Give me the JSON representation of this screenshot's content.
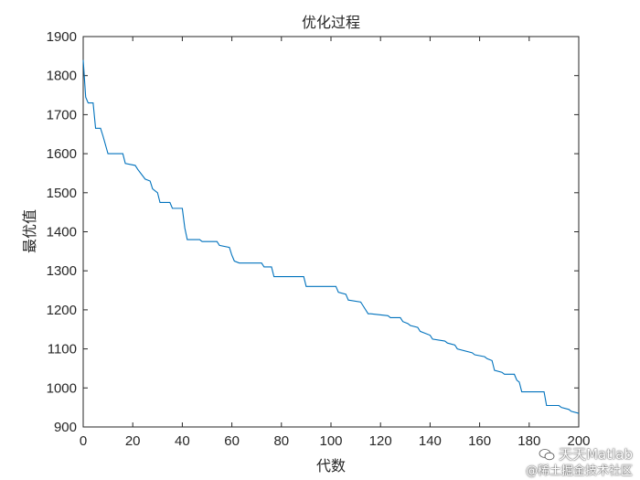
{
  "chart_data": {
    "type": "line",
    "title": "优化过程",
    "xlabel": "代数",
    "ylabel": "最优值",
    "xlim": [
      0,
      200
    ],
    "ylim": [
      900,
      1900
    ],
    "xticks": [
      0,
      20,
      40,
      60,
      80,
      100,
      120,
      140,
      160,
      180,
      200
    ],
    "yticks": [
      900,
      1000,
      1100,
      1200,
      1300,
      1400,
      1500,
      1600,
      1700,
      1800,
      1900
    ],
    "grid": false,
    "legend": "none",
    "series_color": "#0072BD",
    "series": [
      {
        "x": [
          0,
          1,
          2,
          4,
          5,
          7,
          8,
          10,
          16,
          17,
          21,
          22,
          25,
          27,
          28,
          30,
          31,
          35,
          36,
          40,
          41,
          42,
          47,
          48,
          54,
          55,
          59,
          60,
          61,
          63,
          72,
          73,
          76,
          77,
          89,
          90,
          102,
          103,
          106,
          107,
          112,
          113,
          115,
          116,
          123,
          124,
          128,
          129,
          131,
          132,
          135,
          136,
          140,
          141,
          146,
          147,
          150,
          151,
          157,
          158,
          162,
          163,
          165,
          166,
          169,
          170,
          174,
          175,
          176,
          177,
          186,
          187,
          192,
          193,
          196,
          197,
          200
        ],
        "values": [
          1840,
          1745,
          1730,
          1730,
          1665,
          1665,
          1645,
          1600,
          1600,
          1575,
          1570,
          1560,
          1535,
          1530,
          1510,
          1500,
          1475,
          1475,
          1460,
          1460,
          1410,
          1380,
          1380,
          1375,
          1375,
          1365,
          1360,
          1340,
          1325,
          1320,
          1320,
          1310,
          1310,
          1285,
          1285,
          1260,
          1260,
          1245,
          1240,
          1225,
          1220,
          1210,
          1190,
          1190,
          1185,
          1180,
          1180,
          1170,
          1165,
          1160,
          1155,
          1145,
          1135,
          1125,
          1120,
          1115,
          1110,
          1100,
          1090,
          1085,
          1080,
          1075,
          1070,
          1045,
          1040,
          1035,
          1035,
          1020,
          1015,
          990,
          990,
          955,
          955,
          950,
          945,
          940,
          935
        ]
      }
    ]
  },
  "watermark": {
    "line1": "天天Matlab",
    "line2": "@稀土掘金技术社区"
  }
}
